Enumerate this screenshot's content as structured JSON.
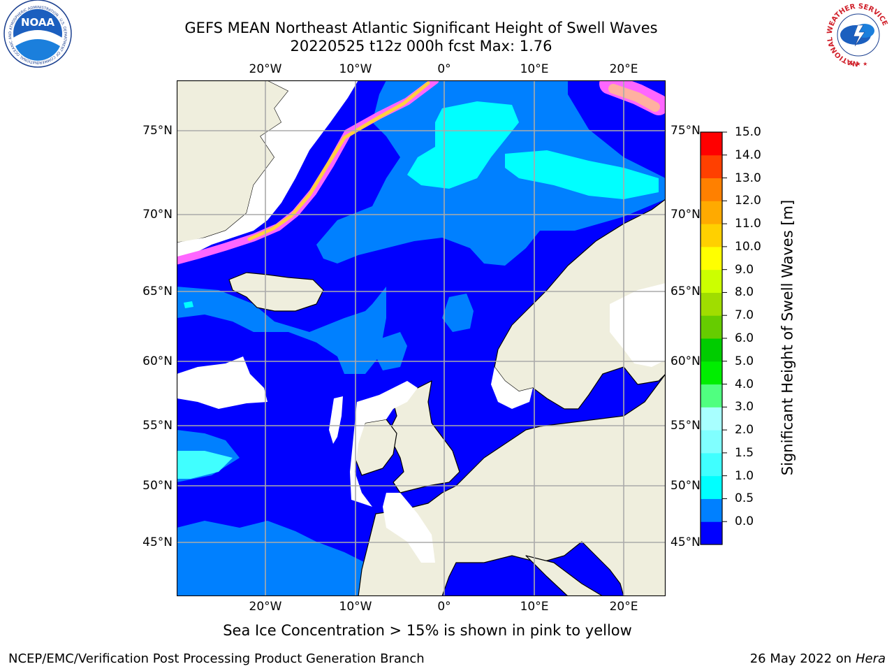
{
  "header": {
    "title_line1": "GEFS MEAN Northeast Atlantic Significant Height of Swell Waves",
    "title_line2": "20220525 t12z 000h fcst   Max: 1.76"
  },
  "logos": {
    "noaa": {
      "text": "NOAA",
      "ring_text": "NATIONAL OCEANIC AND ATMOSPHERIC ADMINISTRATION · U.S. DEPARTMENT OF COMMERCE"
    },
    "nws": {
      "ring_text": "NATIONAL WEATHER SERVICE"
    }
  },
  "map": {
    "lon_ticks": [
      "20°W",
      "10°W",
      "0°",
      "10°E",
      "20°E"
    ],
    "lat_ticks": [
      "75°N",
      "70°N",
      "65°N",
      "60°N",
      "55°N",
      "50°N",
      "45°N"
    ],
    "colors": {
      "land": "#efeedd",
      "grid": "#aaaaaa",
      "ice": "#ff66ff",
      "ice_edge": "#ffd040"
    }
  },
  "colorbar": {
    "title": "Significant Height of Swell Waves [m]",
    "tick_labels": [
      "15.0",
      "14.0",
      "13.0",
      "12.0",
      "11.0",
      "10.0",
      "9.0",
      "8.0",
      "7.0",
      "6.0",
      "5.0",
      "4.0",
      "3.0",
      "2.0",
      "1.5",
      "1.0",
      "0.5",
      "0.0"
    ],
    "levels": [
      0.0,
      0.5,
      1.0,
      1.5,
      2.0,
      3.0,
      4.0,
      5.0,
      6.0,
      7.0,
      8.0,
      9.0,
      10.0,
      11.0,
      12.0,
      13.0,
      14.0,
      15.0
    ],
    "colors": [
      "#0000ff",
      "#0080ff",
      "#00ffff",
      "#40ffff",
      "#80ffff",
      "#a8ffff",
      "#50ff80",
      "#00ee00",
      "#00cc00",
      "#66cc00",
      "#a0dd00",
      "#ccff00",
      "#ffff00",
      "#ffd000",
      "#ffaa00",
      "#ff8000",
      "#ff4000",
      "#ff0000"
    ]
  },
  "caption": "Sea Ice Concentration > 15% is shown in pink to yellow",
  "footer": {
    "left": "NCEP/EMC/Verification Post Processing Product Generation Branch",
    "right_date": "26 May 2022 on",
    "right_machine": "Hera"
  }
}
